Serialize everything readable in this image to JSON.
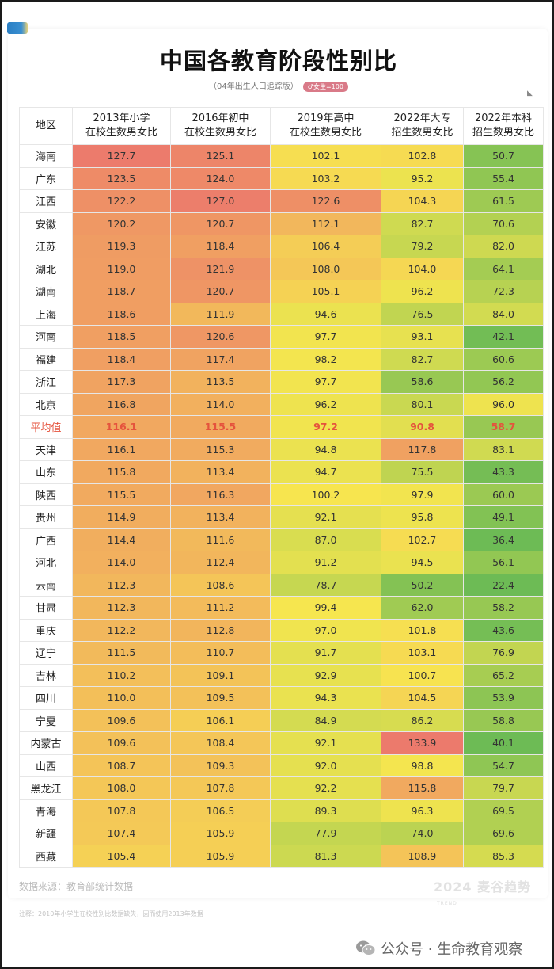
{
  "header": {
    "title": "中国各教育阶段性别比",
    "subtitle": "（04年出生人口追踪版）",
    "badge": "♂女生=100"
  },
  "table": {
    "columns": [
      "地区",
      "2013年小学\n在校生数男女比",
      "2016年初中\n在校生数男女比",
      "2019年高中\n在校生数男女比",
      "2022年大专\n招生数男女比",
      "2022年本科\n招生数男女比"
    ],
    "rows": [
      {
        "region": "海南",
        "values": [
          "127.7",
          "125.1",
          "102.1",
          "102.8",
          "50.7"
        ]
      },
      {
        "region": "广东",
        "values": [
          "123.5",
          "124.0",
          "103.2",
          "95.2",
          "55.4"
        ]
      },
      {
        "region": "江西",
        "values": [
          "122.2",
          "127.0",
          "122.6",
          "104.3",
          "61.5"
        ]
      },
      {
        "region": "安徽",
        "values": [
          "120.2",
          "120.7",
          "112.1",
          "82.7",
          "70.6"
        ]
      },
      {
        "region": "江苏",
        "values": [
          "119.3",
          "118.4",
          "106.4",
          "79.2",
          "82.0"
        ]
      },
      {
        "region": "湖北",
        "values": [
          "119.0",
          "121.9",
          "108.0",
          "104.0",
          "64.1"
        ]
      },
      {
        "region": "湖南",
        "values": [
          "118.7",
          "120.7",
          "105.1",
          "96.2",
          "72.3"
        ]
      },
      {
        "region": "上海",
        "values": [
          "118.6",
          "111.9",
          "94.6",
          "76.5",
          "84.0"
        ]
      },
      {
        "region": "河南",
        "values": [
          "118.5",
          "120.6",
          "97.7",
          "93.1",
          "42.1"
        ]
      },
      {
        "region": "福建",
        "values": [
          "118.4",
          "117.4",
          "98.2",
          "82.7",
          "60.6"
        ]
      },
      {
        "region": "浙江",
        "values": [
          "117.3",
          "113.5",
          "97.7",
          "58.6",
          "56.2"
        ]
      },
      {
        "region": "北京",
        "values": [
          "116.8",
          "114.0",
          "96.2",
          "80.1",
          "96.0"
        ]
      },
      {
        "region": "平均值",
        "values": [
          "116.1",
          "115.5",
          "97.2",
          "90.8",
          "58.7"
        ],
        "is_average": true
      },
      {
        "region": "天津",
        "values": [
          "116.1",
          "115.3",
          "94.8",
          "117.8",
          "83.1"
        ]
      },
      {
        "region": "山东",
        "values": [
          "115.8",
          "113.4",
          "94.7",
          "75.5",
          "43.3"
        ]
      },
      {
        "region": "陕西",
        "values": [
          "115.5",
          "116.3",
          "100.2",
          "97.9",
          "60.0"
        ]
      },
      {
        "region": "贵州",
        "values": [
          "114.9",
          "113.4",
          "92.1",
          "95.8",
          "49.1"
        ]
      },
      {
        "region": "广西",
        "values": [
          "114.4",
          "111.6",
          "87.0",
          "102.7",
          "36.4"
        ]
      },
      {
        "region": "河北",
        "values": [
          "114.0",
          "112.4",
          "91.2",
          "94.5",
          "56.1"
        ]
      },
      {
        "region": "云南",
        "values": [
          "112.3",
          "108.6",
          "78.7",
          "50.2",
          "22.4"
        ]
      },
      {
        "region": "甘肃",
        "values": [
          "112.3",
          "111.2",
          "99.4",
          "62.0",
          "58.2"
        ]
      },
      {
        "region": "重庆",
        "values": [
          "112.2",
          "112.8",
          "97.0",
          "101.8",
          "43.6"
        ]
      },
      {
        "region": "辽宁",
        "values": [
          "111.5",
          "110.7",
          "91.7",
          "103.1",
          "76.9"
        ]
      },
      {
        "region": "吉林",
        "values": [
          "110.2",
          "109.1",
          "92.9",
          "100.7",
          "65.2"
        ]
      },
      {
        "region": "四川",
        "values": [
          "110.0",
          "109.5",
          "94.3",
          "104.5",
          "53.9"
        ]
      },
      {
        "region": "宁夏",
        "values": [
          "109.6",
          "106.1",
          "84.9",
          "86.2",
          "58.8"
        ]
      },
      {
        "region": "内蒙古",
        "values": [
          "109.6",
          "108.4",
          "92.1",
          "133.9",
          "40.1"
        ]
      },
      {
        "region": "山西",
        "values": [
          "108.7",
          "109.3",
          "92.0",
          "98.8",
          "54.7"
        ]
      },
      {
        "region": "黑龙江",
        "values": [
          "108.0",
          "107.8",
          "92.2",
          "115.8",
          "79.7"
        ]
      },
      {
        "region": "青海",
        "values": [
          "107.8",
          "106.5",
          "89.3",
          "96.3",
          "69.5"
        ]
      },
      {
        "region": "新疆",
        "values": [
          "107.4",
          "105.9",
          "77.9",
          "74.0",
          "69.6"
        ]
      },
      {
        "region": "西藏",
        "values": [
          "105.4",
          "105.9",
          "81.3",
          "108.9",
          "85.3"
        ]
      }
    ]
  },
  "footer": {
    "source": "数据来源：教育部统计数据",
    "brand": "2024 麦谷趋势",
    "brand_small": "TREND",
    "note": "注释：2010年小学生在校性别比数据缺失，因而使用2013年数据",
    "wechat": "公众号 · 生命教育观察"
  },
  "colors": {
    "high": "#ec7a6c",
    "mid": "#f7e64f",
    "low": "#6dbb55",
    "average_text": "#e5533d",
    "corner_tag": "#2a7fc4"
  },
  "chart_data": {
    "type": "heatmap",
    "title": "中国各教育阶段性别比",
    "subtitle": "（04年出生人口追踪版）",
    "xlabel": "",
    "ylabel": "地区",
    "categories": [
      "2013年小学在校生数男女比",
      "2016年初中在校生数男女比",
      "2019年高中在校生数男女比",
      "2022年大专招生数男女比",
      "2022年本科招生数男女比"
    ],
    "rows": [
      "海南",
      "广东",
      "江西",
      "安徽",
      "江苏",
      "湖北",
      "湖南",
      "上海",
      "河南",
      "福建",
      "浙江",
      "北京",
      "平均值",
      "天津",
      "山东",
      "陕西",
      "贵州",
      "广西",
      "河北",
      "云南",
      "甘肃",
      "重庆",
      "辽宁",
      "吉林",
      "四川",
      "宁夏",
      "内蒙古",
      "山西",
      "黑龙江",
      "青海",
      "新疆",
      "西藏"
    ],
    "values": [
      [
        127.7,
        125.1,
        102.1,
        102.8,
        50.7
      ],
      [
        123.5,
        124.0,
        103.2,
        95.2,
        55.4
      ],
      [
        122.2,
        127.0,
        122.6,
        104.3,
        61.5
      ],
      [
        120.2,
        120.7,
        112.1,
        82.7,
        70.6
      ],
      [
        119.3,
        118.4,
        106.4,
        79.2,
        82.0
      ],
      [
        119.0,
        121.9,
        108.0,
        104.0,
        64.1
      ],
      [
        118.7,
        120.7,
        105.1,
        96.2,
        72.3
      ],
      [
        118.6,
        111.9,
        94.6,
        76.5,
        84.0
      ],
      [
        118.5,
        120.6,
        97.7,
        93.1,
        42.1
      ],
      [
        118.4,
        117.4,
        98.2,
        82.7,
        60.6
      ],
      [
        117.3,
        113.5,
        97.7,
        58.6,
        56.2
      ],
      [
        116.8,
        114.0,
        96.2,
        80.1,
        96.0
      ],
      [
        116.1,
        115.5,
        97.2,
        90.8,
        58.7
      ],
      [
        116.1,
        115.3,
        94.8,
        117.8,
        83.1
      ],
      [
        115.8,
        113.4,
        94.7,
        75.5,
        43.3
      ],
      [
        115.5,
        116.3,
        100.2,
        97.9,
        60.0
      ],
      [
        114.9,
        113.4,
        92.1,
        95.8,
        49.1
      ],
      [
        114.4,
        111.6,
        87.0,
        102.7,
        36.4
      ],
      [
        114.0,
        112.4,
        91.2,
        94.5,
        56.1
      ],
      [
        112.3,
        108.6,
        78.7,
        50.2,
        22.4
      ],
      [
        112.3,
        111.2,
        99.4,
        62.0,
        58.2
      ],
      [
        112.2,
        112.8,
        97.0,
        101.8,
        43.6
      ],
      [
        111.5,
        110.7,
        91.7,
        103.1,
        76.9
      ],
      [
        110.2,
        109.1,
        92.9,
        100.7,
        65.2
      ],
      [
        110.0,
        109.5,
        94.3,
        104.5,
        53.9
      ],
      [
        109.6,
        106.1,
        84.9,
        86.2,
        58.8
      ],
      [
        109.6,
        108.4,
        92.1,
        133.9,
        40.1
      ],
      [
        108.7,
        109.3,
        92.0,
        98.8,
        54.7
      ],
      [
        108.0,
        107.8,
        92.2,
        115.8,
        79.7
      ],
      [
        107.8,
        106.5,
        89.3,
        96.3,
        69.5
      ],
      [
        107.4,
        105.9,
        77.9,
        74.0,
        69.6
      ],
      [
        105.4,
        105.9,
        81.3,
        108.9,
        85.3
      ]
    ],
    "color_scale": {
      "low": "#6dbb55",
      "mid": "#f7e64f",
      "high": "#ec7a6c"
    },
    "legend_position": "none"
  }
}
